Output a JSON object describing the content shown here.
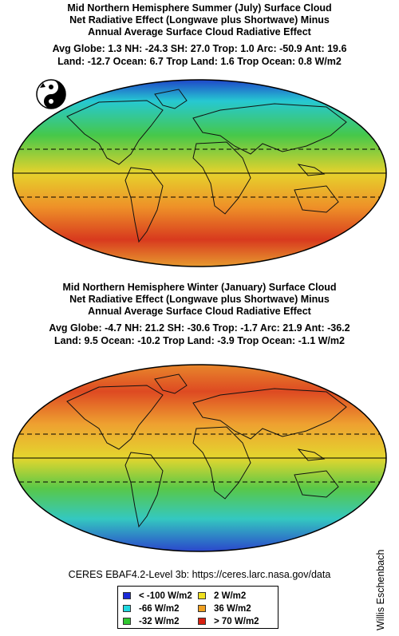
{
  "maps": [
    {
      "title_lines": [
        "Mid Northern Hemisphere Summer (July) Surface Cloud",
        "Net Radiative Effect (Longwave plus Shortwave) Minus",
        "Annual Average Surface Cloud Radiative Effect"
      ],
      "stats_lines": [
        "Avg Globe: 1.3  NH: -24.3  SH: 27.0  Trop: 1.0 Arc: -50.9  Ant: 19.6",
        "Land: -12.7 Ocean: 6.7 Trop Land: 1.6 Trop Ocean: 0.8 W/m2"
      ],
      "colors": {
        "north_polar": "#1e3cc8",
        "north_mid": "#26c8d2",
        "north_sub": "#46c84a",
        "tropics": "#e6d22c",
        "south_sub": "#ee9028",
        "south_mid": "#d83a1e",
        "south_polar": "#e8a030"
      }
    },
    {
      "title_lines": [
        "Mid Northern Hemisphere Winter (January) Surface Cloud",
        "Net Radiative Effect (Longwave plus Shortwave) Minus",
        "Annual Average Surface Cloud Radiative Effect"
      ],
      "stats_lines": [
        "Avg Globe: -4.7  NH: 21.2  SH: -30.6  Trop: -1.7 Arc: 21.9  Ant: -36.2",
        "Land: 9.5 Ocean: -10.2 Trop Land: -3.9 Trop Ocean: -1.1 W/m2"
      ],
      "colors": {
        "north_polar": "#e88a2c",
        "north_mid": "#de4a22",
        "north_sub": "#eea030",
        "tropics": "#e4d62e",
        "south_sub": "#58c848",
        "south_mid": "#34c8c0",
        "south_polar": "#2a40cc"
      }
    }
  ],
  "source_text": "CERES EBAF4.2-Level 3b: https://ceres.larc.nasa.gov/data",
  "credit": "Willis Eschenbach",
  "legend": [
    {
      "label": "< -100 W/m2",
      "color": "#1a2ad8"
    },
    {
      "label": "2 W/m2",
      "color": "#f0e020"
    },
    {
      "label": "-66 W/m2",
      "color": "#20d8e0"
    },
    {
      "label": "36 W/m2",
      "color": "#f0a020"
    },
    {
      "label": "-32 W/m2",
      "color": "#30c830"
    },
    {
      "label": "> 70 W/m2",
      "color": "#d82010"
    }
  ]
}
